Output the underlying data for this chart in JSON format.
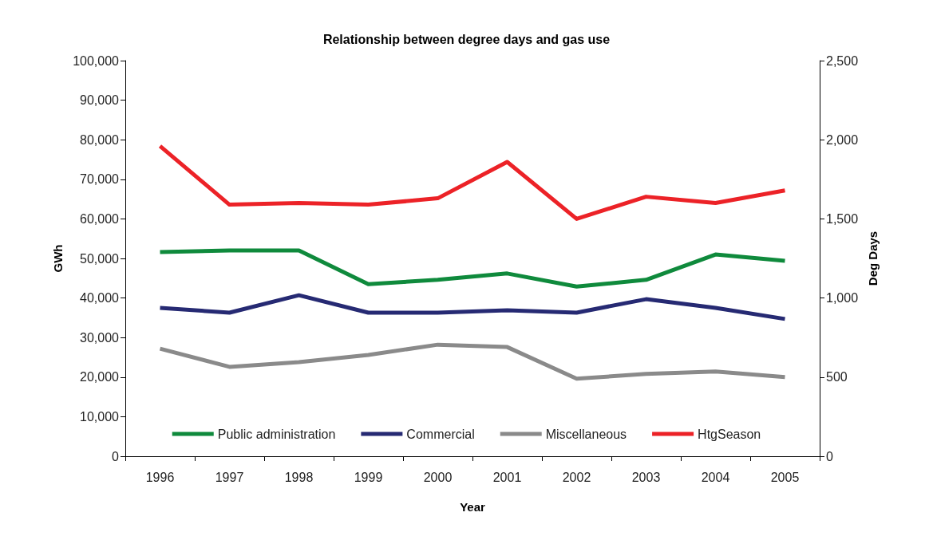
{
  "chart_data": {
    "type": "line",
    "title": "Relationship between degree days and gas use",
    "xlabel": "Year",
    "ylabel": "GWh",
    "y2label": "Deg Days",
    "categories": [
      "1996",
      "1997",
      "1998",
      "1999",
      "2000",
      "2001",
      "2002",
      "2003",
      "2004",
      "2005"
    ],
    "series": [
      {
        "name": "Public administration",
        "color": "#0f8a3c",
        "values": [
          51600,
          52000,
          52000,
          43500,
          44600,
          46200,
          42900,
          44600,
          51000,
          49400
        ]
      },
      {
        "name": "Commercial",
        "color": "#262a73",
        "values": [
          37500,
          36300,
          40700,
          36300,
          36300,
          36900,
          36300,
          39700,
          37500,
          34700
        ]
      },
      {
        "name": "Miscellaneous",
        "color": "#8a8a8a",
        "values": [
          27200,
          22600,
          23800,
          25600,
          28200,
          27600,
          19600,
          20800,
          21400,
          20000
        ]
      },
      {
        "name": "HtgSeason",
        "color": "#ec2227",
        "axis": "y2",
        "values": [
          1960,
          1590,
          1600,
          1590,
          1630,
          1860,
          1500,
          1640,
          1600,
          1680
        ]
      }
    ],
    "ylim": [
      0,
      100000
    ],
    "yticks": [
      0,
      {
        "value": 10000,
        "label": "10,000"
      },
      {
        "value": 20000,
        "label": "20,000"
      },
      {
        "value": 30000,
        "label": "30,000"
      },
      {
        "value": 40000,
        "label": "40,000"
      },
      {
        "value": 50000,
        "label": "50,000"
      },
      {
        "value": 60000,
        "label": "60,000"
      },
      {
        "value": 70000,
        "label": "70,000"
      },
      {
        "value": 80000,
        "label": "80,000"
      },
      {
        "value": 90000,
        "label": "90,000"
      },
      {
        "value": 100000,
        "label": "100,000"
      }
    ],
    "y2lim": [
      0,
      2500
    ],
    "y2ticks": [
      0,
      500,
      {
        "value": 1000,
        "label": "1,000"
      },
      {
        "value": 1500,
        "label": "1,500"
      },
      {
        "value": 2000,
        "label": "2,000"
      },
      {
        "value": 2500,
        "label": "2,500"
      }
    ],
    "grid": false,
    "legend": "bottom",
    "marker": "none",
    "line_style": "solid"
  }
}
